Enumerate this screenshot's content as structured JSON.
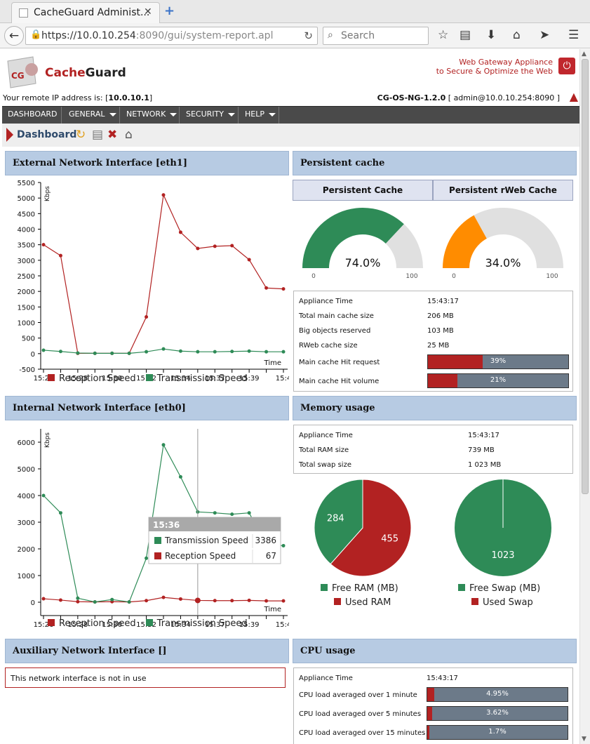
{
  "browser": {
    "tab_title": "CacheGuard Administ...",
    "url_host": "https://10.0.10.254",
    "url_rest": ":8090/gui/system-report.apl",
    "search_placeholder": "Search"
  },
  "header": {
    "brand": "CacheGuard",
    "brand_lead": "Cache",
    "brand_tail": "Guard",
    "logo_text": "CG",
    "tagline_1": "Web Gateway Appliance",
    "tagline_2": "to Secure & Optimize the Web",
    "remote_label": "Your remote IP address is: [",
    "remote_ip": "10.0.10.1",
    "remote_close": "]",
    "version": "CG-OS-NG-1.2.0",
    "login": " [ admin@10.0.10.254:8090 ]"
  },
  "menu": [
    "DASHBOARD",
    "GENERAL",
    "NETWORK",
    "SECURITY",
    "HELP"
  ],
  "breadcrumb": "Dashboard",
  "colors": {
    "red": "#b22222",
    "green": "#2e8b57",
    "orange": "#ff8c00",
    "header_blue": "#b7cbe3"
  },
  "panels": {
    "external": "External Network Interface [eth1]",
    "internal": "Internal Network Interface [eth0]",
    "auxiliary": "Auxiliary Network Interface []",
    "cache": "Persistent cache",
    "memory": "Memory usage",
    "cpu": "CPU usage"
  },
  "auxiliary_msg": "This network interface is not in use",
  "cache": {
    "tab_1": "Persistent Cache",
    "tab_2": "Persistent rWeb Cache",
    "gauge_1": {
      "value": 74.0,
      "label": "74.0%",
      "min": "0",
      "max": "100"
    },
    "gauge_2": {
      "value": 34.0,
      "label": "34.0%",
      "min": "0",
      "max": "100"
    },
    "rows": [
      {
        "label": "Appliance Time",
        "value": "15:43:17"
      },
      {
        "label": "Total main cache size",
        "value": "206 MB"
      },
      {
        "label": "Big objects reserved",
        "value": "103 MB"
      },
      {
        "label": "RWeb cache size",
        "value": "25 MB"
      }
    ],
    "bars": [
      {
        "label": "Main cache Hit request",
        "value": 39,
        "text": "39%"
      },
      {
        "label": "Main cache Hit volume",
        "value": 21,
        "text": "21%"
      }
    ]
  },
  "memory": {
    "rows": [
      {
        "label": "Appliance Time",
        "value": "15:43:17"
      },
      {
        "label": "Total RAM size",
        "value": "739 MB"
      },
      {
        "label": "Total swap size",
        "value": "1 023 MB"
      }
    ],
    "ram_free": "284",
    "ram_used": "455",
    "swap_free": "1023",
    "legend_ram_free": "Free RAM (MB)",
    "legend_ram_used": "Used RAM",
    "legend_swap_free": "Free Swap (MB)",
    "legend_swap_used": "Used Swap"
  },
  "cpu": {
    "rows": [
      {
        "label": "Appliance Time",
        "value": "15:43:17"
      }
    ],
    "bars": [
      {
        "label": "CPU load averaged over 1 minute",
        "value": 4.95,
        "text": "4.95%"
      },
      {
        "label": "CPU load averaged over 5 minutes",
        "value": 3.62,
        "text": "3.62%"
      },
      {
        "label": "CPU load averaged over 15 minutes",
        "value": 1.7,
        "text": "1.7%"
      }
    ]
  },
  "chart_data": [
    {
      "type": "line",
      "ylabel": "Kbps",
      "xlabel": "Time",
      "ylim": [
        -500,
        5500
      ],
      "yticks": [
        -500,
        0,
        500,
        1000,
        1500,
        2000,
        2500,
        3000,
        3500,
        4000,
        4500,
        5000,
        5500
      ],
      "xticks": [
        "15:26",
        "15:28",
        "15:30",
        "15:32",
        "15:34",
        "15:37",
        "15:39",
        "15:4"
      ],
      "series": [
        {
          "name": "Reception Speed",
          "values": [
            3500,
            3150,
            10,
            10,
            10,
            10,
            1180,
            5100,
            3900,
            3380,
            3450,
            3470,
            3020,
            2110,
            2080
          ]
        },
        {
          "name": "Transmission Speed",
          "values": [
            110,
            70,
            20,
            10,
            10,
            10,
            60,
            150,
            80,
            60,
            60,
            70,
            80,
            60,
            60
          ]
        }
      ]
    },
    {
      "type": "line",
      "ylabel": "Kbps",
      "xlabel": "Time",
      "ylim": [
        -500,
        6500
      ],
      "yticks": [
        0,
        1000,
        2000,
        3000,
        4000,
        5000,
        6000
      ],
      "xticks": [
        "15:26",
        "15:28",
        "15:30",
        "15:32",
        "15:34",
        "15:37",
        "15:39",
        "15:4"
      ],
      "series": [
        {
          "name": "Reception Speed",
          "values": [
            130,
            80,
            20,
            10,
            20,
            10,
            60,
            180,
            120,
            67,
            60,
            60,
            70,
            50,
            50
          ]
        },
        {
          "name": "Transmission Speed",
          "values": [
            4000,
            3350,
            150,
            10,
            100,
            10,
            1650,
            5900,
            4700,
            3386,
            3350,
            3300,
            3350,
            2150,
            2120
          ]
        }
      ],
      "tooltip": {
        "title": "15:36",
        "rows": [
          {
            "name": "Transmission Speed",
            "value": "3386"
          },
          {
            "name": "Reception Speed",
            "value": "67"
          }
        ]
      }
    },
    {
      "type": "pie",
      "labels": [
        "Free RAM (MB)",
        "Used RAM"
      ],
      "values": [
        284,
        455
      ]
    },
    {
      "type": "pie",
      "labels": [
        "Free Swap (MB)",
        "Used Swap"
      ],
      "values": [
        1023,
        0
      ]
    }
  ]
}
